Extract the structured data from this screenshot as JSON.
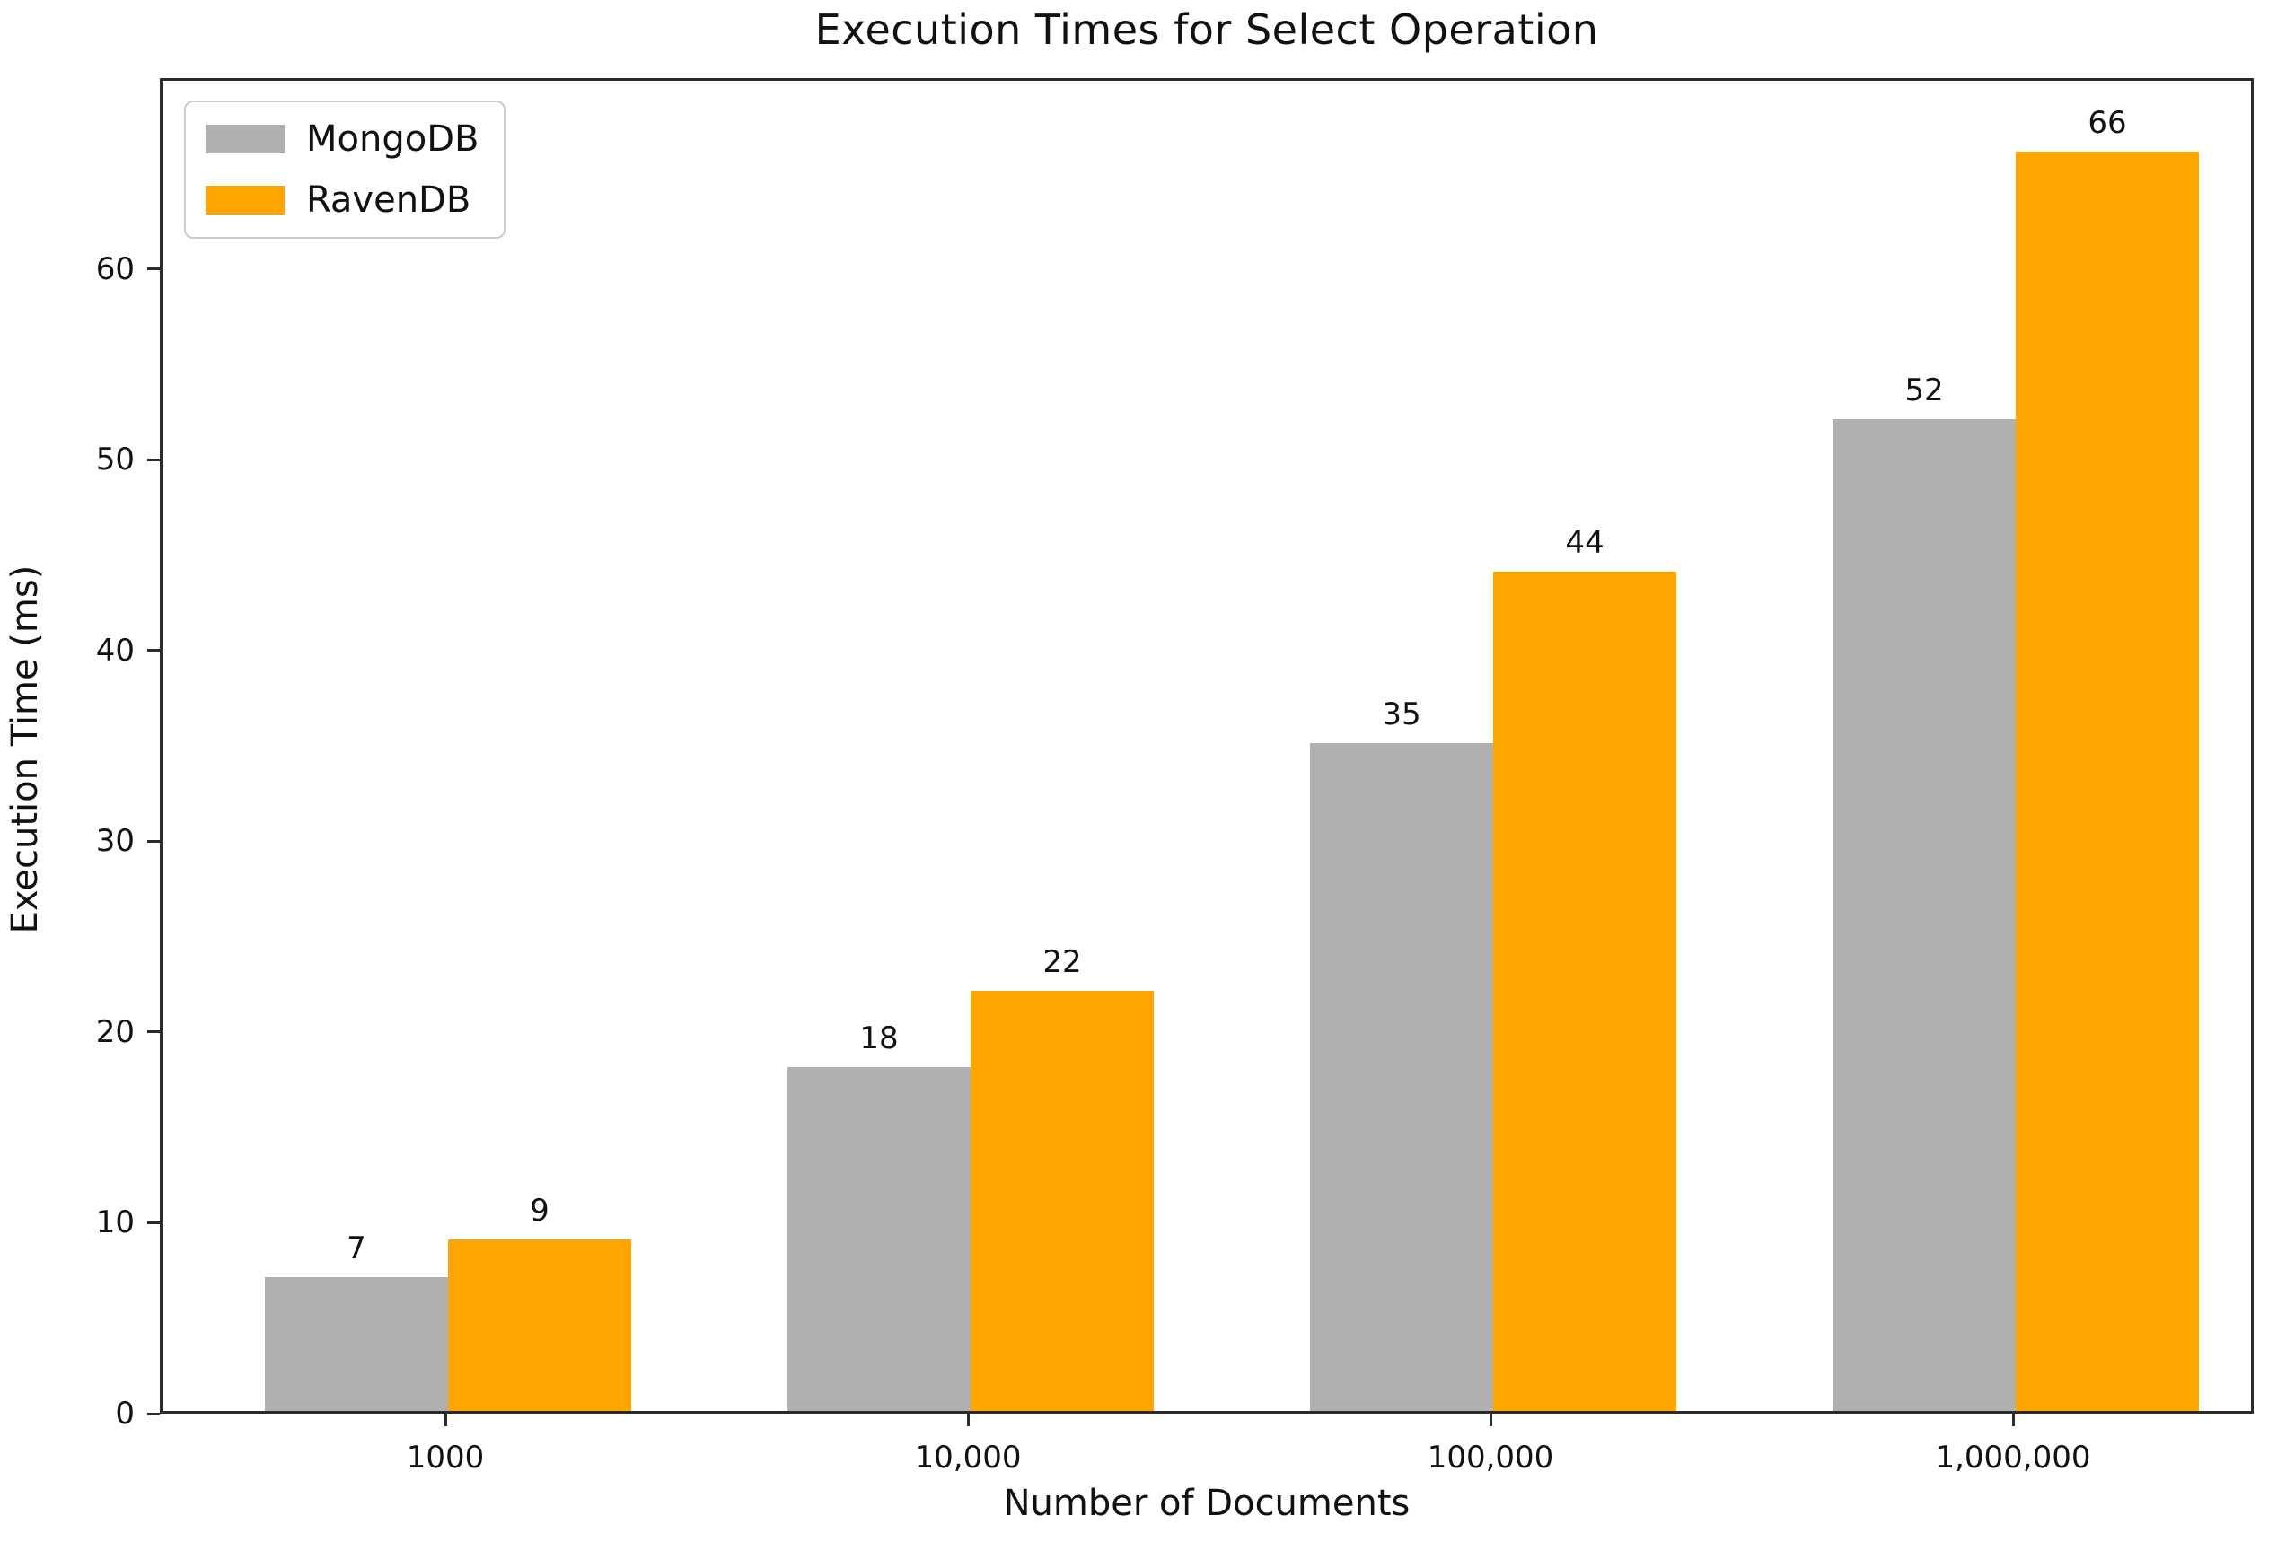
{
  "chart_data": {
    "type": "bar",
    "title": "Execution Times for Select Operation",
    "xlabel": "Number of Documents",
    "ylabel": "Execution Time (ms)",
    "categories": [
      "1000",
      "10,000",
      "100,000",
      "1,000,000"
    ],
    "series": [
      {
        "name": "MongoDB",
        "values": [
          7,
          18,
          35,
          52
        ],
        "color": "#b0b0b0"
      },
      {
        "name": "RavenDB",
        "values": [
          9,
          22,
          44,
          66
        ],
        "color": "#ffa500"
      }
    ],
    "yticks": [
      0,
      10,
      20,
      30,
      40,
      50,
      60
    ],
    "ylim": [
      0,
      70
    ],
    "grid": false,
    "legend_position": "upper-left",
    "bar_value_labels": true
  }
}
